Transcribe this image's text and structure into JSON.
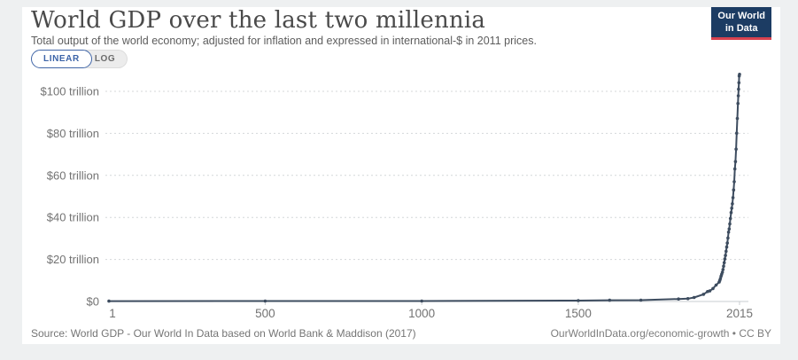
{
  "header": {
    "title": "World GDP over the last two millennia",
    "subtitle": "Total output of the world economy; adjusted for inflation and expressed in international-$ in 2011 prices."
  },
  "logo": {
    "line1": "Our World",
    "line2": "in Data",
    "bg_color": "#1c3c63",
    "accent_color": "#d8424f"
  },
  "controls": {
    "linear_label": "LINEAR",
    "log_label": "LOG",
    "selected": "LINEAR",
    "accent_color": "#3c64a8"
  },
  "chart_data": {
    "type": "line",
    "title": "World GDP over the last two millennia",
    "xlabel": "",
    "ylabel": "",
    "xlim": [
      1,
      2015
    ],
    "ylim": [
      0,
      112
    ],
    "grid": "horizontal dashed",
    "legend": "none",
    "line_color": "#3d4c5f",
    "grid_color": "#d4d7d9",
    "axis_color": "#c9cdd0",
    "tick_label_color": "#737373",
    "y_ticks": [
      {
        "value": 0,
        "label": "$0"
      },
      {
        "value": 20,
        "label": "$20 trillion"
      },
      {
        "value": 40,
        "label": "$40 trillion"
      },
      {
        "value": 60,
        "label": "$60 trillion"
      },
      {
        "value": 80,
        "label": "$80 trillion"
      },
      {
        "value": 100,
        "label": "$100 trillion"
      }
    ],
    "x_ticks": [
      {
        "value": 1,
        "label": "1"
      },
      {
        "value": 500,
        "label": "500"
      },
      {
        "value": 1000,
        "label": "1000"
      },
      {
        "value": 1500,
        "label": "1500"
      },
      {
        "value": 2015,
        "label": "2015"
      }
    ],
    "series": [
      {
        "name": "World GDP",
        "unit": "trillion international-$ (2011 prices)",
        "points": [
          [
            1,
            0.183
          ],
          [
            500,
            0.2
          ],
          [
            1000,
            0.21
          ],
          [
            1500,
            0.43
          ],
          [
            1600,
            0.58
          ],
          [
            1700,
            0.64
          ],
          [
            1820,
            1.2
          ],
          [
            1850,
            1.36
          ],
          [
            1870,
            1.91
          ],
          [
            1900,
            3.42
          ],
          [
            1913,
            4.74
          ],
          [
            1920,
            5.03
          ],
          [
            1930,
            6.18
          ],
          [
            1940,
            7.81
          ],
          [
            1950,
            9.25
          ],
          [
            1952,
            10.0
          ],
          [
            1954,
            10.9
          ],
          [
            1956,
            12.0
          ],
          [
            1958,
            12.9
          ],
          [
            1960,
            13.9
          ],
          [
            1962,
            15.2
          ],
          [
            1964,
            16.8
          ],
          [
            1966,
            18.5
          ],
          [
            1968,
            20.2
          ],
          [
            1970,
            21.9
          ],
          [
            1972,
            23.9
          ],
          [
            1974,
            25.9
          ],
          [
            1976,
            27.8
          ],
          [
            1978,
            30.2
          ],
          [
            1980,
            33.0
          ],
          [
            1982,
            34.5
          ],
          [
            1984,
            36.9
          ],
          [
            1986,
            39.5
          ],
          [
            1988,
            42.3
          ],
          [
            1990,
            44.4
          ],
          [
            1992,
            46.5
          ],
          [
            1994,
            49.4
          ],
          [
            1996,
            53.1
          ],
          [
            1998,
            57.0
          ],
          [
            2000,
            63.1
          ],
          [
            2002,
            66.6
          ],
          [
            2004,
            72.5
          ],
          [
            2006,
            80.1
          ],
          [
            2008,
            87.1
          ],
          [
            2010,
            94.2
          ],
          [
            2011,
            97.9
          ],
          [
            2012,
            101.0
          ],
          [
            2013,
            104.1
          ],
          [
            2014,
            107.3
          ],
          [
            2015,
            108.1
          ]
        ]
      }
    ]
  },
  "footer": {
    "source": "Source: World GDP - Our World In Data based on World Bank & Maddison (2017)",
    "credit": "OurWorldInData.org/economic-growth • CC BY"
  }
}
